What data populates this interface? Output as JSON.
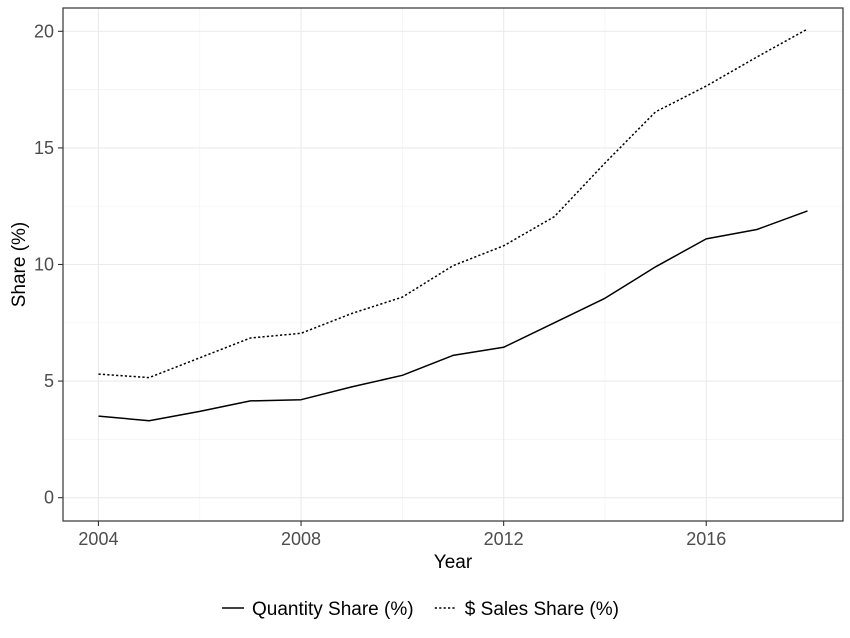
{
  "chart_data": {
    "type": "line",
    "xlabel": "Year",
    "ylabel": "Share (%)",
    "xlim": [
      2003.3,
      2018.7
    ],
    "ylim": [
      -1.0,
      21.0
    ],
    "x_ticks": [
      2004,
      2008,
      2012,
      2016
    ],
    "y_ticks": [
      0,
      5,
      10,
      15,
      20
    ],
    "grid": true,
    "legend_position": "bottom",
    "series": [
      {
        "name": "Quantity Share (%)",
        "line_style": "solid",
        "color": "#000000",
        "x": [
          2004,
          2005,
          2006,
          2007,
          2008,
          2009,
          2010,
          2011,
          2012,
          2013,
          2014,
          2015,
          2016,
          2017,
          2018
        ],
        "y": [
          3.5,
          3.3,
          3.7,
          4.15,
          4.2,
          4.75,
          5.25,
          6.1,
          6.45,
          7.5,
          8.55,
          9.9,
          11.1,
          11.5,
          12.3
        ]
      },
      {
        "name": "$ Sales Share (%)",
        "line_style": "dotted",
        "color": "#000000",
        "x": [
          2004,
          2005,
          2006,
          2007,
          2008,
          2009,
          2010,
          2011,
          2012,
          2013,
          2014,
          2015,
          2016,
          2017,
          2018
        ],
        "y": [
          5.3,
          5.15,
          6.0,
          6.85,
          7.05,
          7.9,
          8.6,
          9.95,
          10.8,
          12.05,
          14.35,
          16.55,
          17.65,
          18.9,
          20.1
        ]
      }
    ]
  }
}
